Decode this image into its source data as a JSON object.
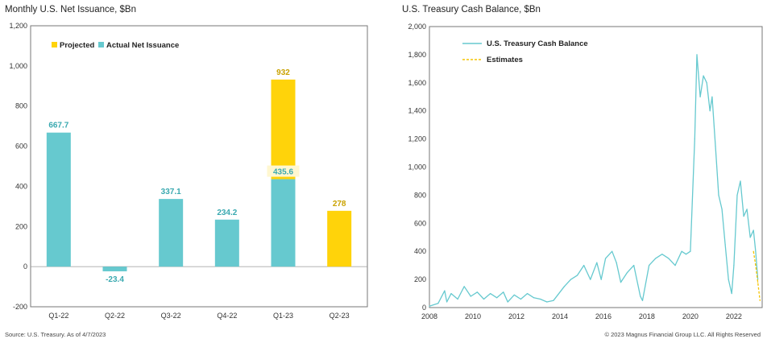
{
  "colors": {
    "actual": "#66c9cf",
    "projected": "#ffd30a",
    "projected_label": "#c9a200",
    "actual_label": "#3aa9b0",
    "line": "#66c9cf",
    "estimate": "#f5c400",
    "axis": "#777777"
  },
  "footer": {
    "source": "Source: U.S. Treasury. As of 4/7/2023",
    "copyright": "© 2023 Magnus Financial Group LLC. All Rights Reserved"
  },
  "chart_data": [
    {
      "type": "bar",
      "title": "Monthly U.S. Net Issuance, $Bn",
      "categories": [
        "Q1-22",
        "Q2-22",
        "Q3-22",
        "Q4-22",
        "Q1-23",
        "Q2-23"
      ],
      "series": [
        {
          "name": "Actual Net Issuance",
          "values": [
            667.7,
            -23.4,
            337.1,
            234.2,
            435.6,
            null
          ]
        },
        {
          "name": "Projected",
          "values": [
            null,
            null,
            null,
            null,
            932,
            278
          ]
        }
      ],
      "data_labels": [
        "667.7",
        "-23.4",
        "337.1",
        "234.2",
        "435.6",
        "932",
        "278"
      ],
      "ylim": [
        -200,
        1200
      ],
      "yticks": [
        -200,
        0,
        200,
        400,
        600,
        800,
        1000,
        1200
      ],
      "ytick_labels": [
        "-200",
        "0",
        "200",
        "400",
        "600",
        "800",
        "1,000",
        "1,200"
      ],
      "legend": [
        "Projected",
        "Actual Net Issuance"
      ],
      "legend_position": "top-left",
      "grid": false
    },
    {
      "type": "line",
      "title": "U.S. Treasury Cash Balance, $Bn",
      "xlim": [
        2008,
        2023.3
      ],
      "ylim": [
        0,
        2000
      ],
      "xticks": [
        2008,
        2010,
        2012,
        2014,
        2016,
        2018,
        2020,
        2022
      ],
      "xtick_labels": [
        "2008",
        "2010",
        "2012",
        "2014",
        "2016",
        "2018",
        "2020",
        "2022"
      ],
      "yticks": [
        0,
        200,
        400,
        600,
        800,
        1000,
        1200,
        1400,
        1600,
        1800,
        2000
      ],
      "ytick_labels": [
        "0",
        "200",
        "400",
        "600",
        "800",
        "1,000",
        "1,200",
        "1,400",
        "1,600",
        "1,800",
        "2,000"
      ],
      "legend_position": "top-left",
      "grid": false,
      "series": [
        {
          "name": "U.S. Treasury Cash Balance",
          "x": [
            2008.0,
            2008.4,
            2008.7,
            2008.8,
            2009.0,
            2009.3,
            2009.6,
            2009.9,
            2010.2,
            2010.5,
            2010.8,
            2011.1,
            2011.4,
            2011.6,
            2011.9,
            2012.2,
            2012.5,
            2012.8,
            2013.1,
            2013.4,
            2013.7,
            2013.9,
            2014.2,
            2014.5,
            2014.8,
            2015.1,
            2015.4,
            2015.7,
            2015.9,
            2016.1,
            2016.4,
            2016.6,
            2016.8,
            2017.1,
            2017.4,
            2017.7,
            2017.8,
            2018.1,
            2018.4,
            2018.7,
            2019.0,
            2019.3,
            2019.6,
            2019.8,
            2020.0,
            2020.2,
            2020.3,
            2020.45,
            2020.6,
            2020.75,
            2020.9,
            2021.0,
            2021.15,
            2021.3,
            2021.45,
            2021.6,
            2021.75,
            2021.9,
            2022.0,
            2022.15,
            2022.3,
            2022.45,
            2022.6,
            2022.75,
            2022.9,
            2023.0,
            2023.1
          ],
          "y": [
            10,
            30,
            120,
            40,
            100,
            60,
            150,
            80,
            110,
            60,
            100,
            70,
            110,
            40,
            90,
            60,
            100,
            70,
            60,
            40,
            50,
            90,
            150,
            200,
            230,
            300,
            200,
            320,
            200,
            350,
            400,
            320,
            180,
            250,
            300,
            80,
            50,
            300,
            350,
            380,
            350,
            300,
            400,
            380,
            400,
            1200,
            1800,
            1500,
            1650,
            1600,
            1400,
            1500,
            1150,
            800,
            700,
            450,
            200,
            100,
            300,
            800,
            900,
            650,
            700,
            500,
            550,
            400,
            200
          ]
        },
        {
          "name": "Estimates",
          "x": [
            2022.9,
            2023.0,
            2023.1,
            2023.2
          ],
          "y": [
            400,
            300,
            180,
            50
          ]
        }
      ]
    }
  ]
}
